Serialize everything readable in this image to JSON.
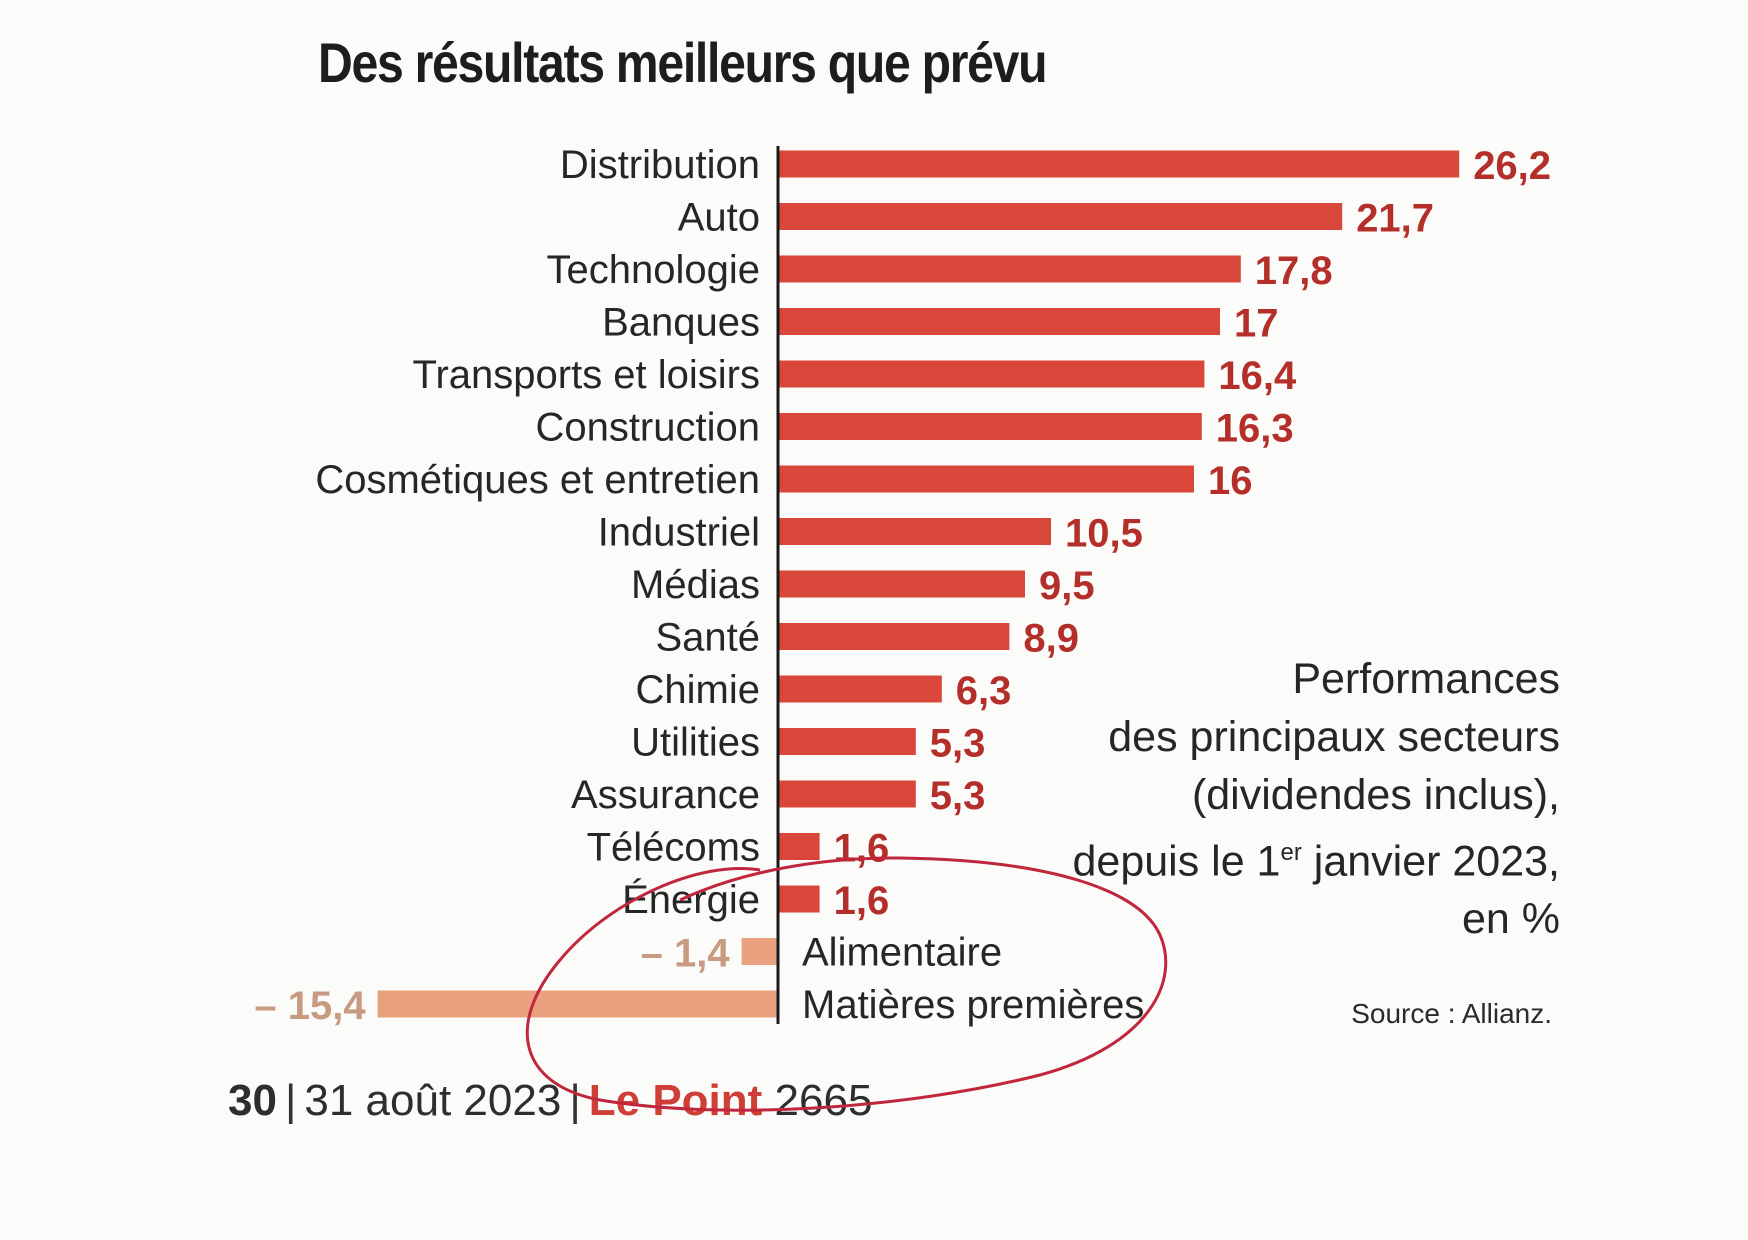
{
  "page": {
    "footer": {
      "page_number": "30",
      "date": "31 août 2023",
      "brand": "Le Point",
      "issue": "2665"
    }
  },
  "chart_data": {
    "type": "bar",
    "orientation": "horizontal",
    "title": "Des résultats meilleurs que prévu",
    "categories": [
      "Distribution",
      "Auto",
      "Technologie",
      "Banques",
      "Transports et loisirs",
      "Construction",
      "Cosmétiques et entretien",
      "Industriel",
      "Médias",
      "Santé",
      "Chimie",
      "Utilities",
      "Assurance",
      "Télécoms",
      "Énergie",
      "Alimentaire",
      "Matières premières"
    ],
    "values": [
      26.2,
      21.7,
      17.8,
      17,
      16.4,
      16.3,
      16,
      10.5,
      9.5,
      8.9,
      6.3,
      5.3,
      5.3,
      1.6,
      1.6,
      -1.4,
      -15.4
    ],
    "value_labels": [
      "26,2",
      "21,7",
      "17,8",
      "17",
      "16,4",
      "16,3",
      "16",
      "10,5",
      "9,5",
      "8,9",
      "6,3",
      "5,3",
      "5,3",
      "1,6",
      "1,6",
      "– 1,4",
      "– 15,4"
    ],
    "xlim": [
      -15.4,
      26.2
    ],
    "grid": false,
    "colors": {
      "positive_bar": "#d9473b",
      "negative_bar": "#e8a07e",
      "positive_label": "#b52f2a",
      "negative_label": "#c99a82",
      "annotation_ring": "#c0273d"
    },
    "caption": {
      "lines": [
        "Performances",
        "des principaux secteurs",
        "(dividendes inclus),",
        "depuis le 1er janvier 2023,",
        "en %"
      ]
    },
    "source": "Source : Allianz."
  }
}
